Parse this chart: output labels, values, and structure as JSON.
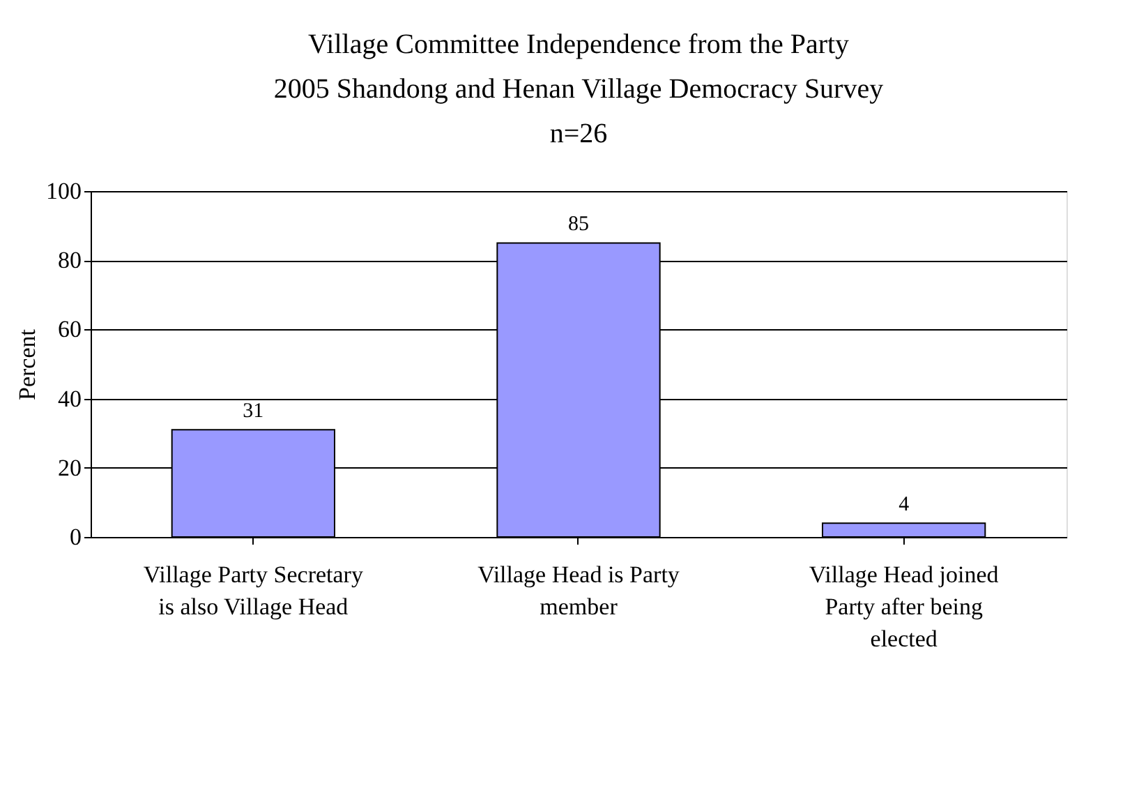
{
  "chart_data": {
    "type": "bar",
    "title": "Village Committee Independence from the Party\n2005 Shandong and Henan Village Democracy Survey\nn=26",
    "ylabel": "Percent",
    "categories": [
      "Village Party Secretary is also Village Head",
      "Village Head is Party member",
      "Village Head joined Party after being elected"
    ],
    "values": [
      31,
      85,
      4
    ],
    "color": "#9999ff",
    "ylim": [
      0,
      100
    ],
    "yticks": [
      0,
      20,
      40,
      60,
      80,
      100
    ],
    "grid": "y",
    "data_labels": true
  }
}
